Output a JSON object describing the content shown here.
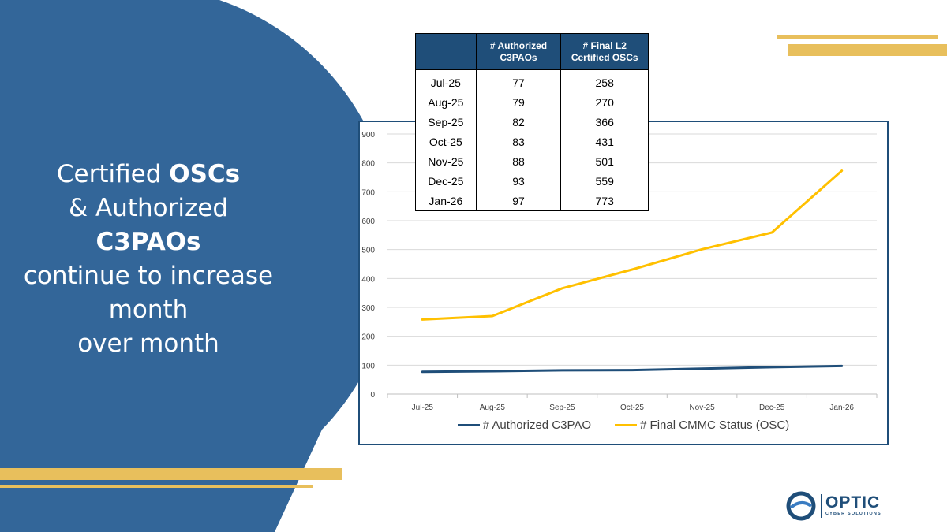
{
  "headline": {
    "line1_pre": "Certified ",
    "line1_bold": "OSCs",
    "line2": "& Authorized",
    "line3_bold": "C3PAOs",
    "line4": "continue to increase",
    "line5": "month",
    "line6": "over month"
  },
  "table": {
    "headers": [
      "",
      "# Authorized C3PAOs",
      "# Final L2 Certified OSCs"
    ],
    "rows": [
      [
        "Jul-25",
        "77",
        "258"
      ],
      [
        "Aug-25",
        "79",
        "270"
      ],
      [
        "Sep-25",
        "82",
        "366"
      ],
      [
        "Oct-25",
        "83",
        "431"
      ],
      [
        "Nov-25",
        "88",
        "501"
      ],
      [
        "Dec-25",
        "93",
        "559"
      ],
      [
        "Jan-26",
        "97",
        "773"
      ]
    ]
  },
  "chart_data": {
    "type": "line",
    "title": "",
    "xlabel": "",
    "ylabel": "",
    "categories": [
      "Jul-25",
      "Aug-25",
      "Sep-25",
      "Oct-25",
      "Nov-25",
      "Dec-25",
      "Jan-26"
    ],
    "y_ticks": [
      "0",
      "100",
      "200",
      "300",
      "400",
      "500",
      "600",
      "700",
      "800",
      "900"
    ],
    "ylim": [
      0,
      900
    ],
    "grid": true,
    "legend_position": "bottom",
    "series": [
      {
        "name": "# Authorized C3PAO",
        "values": [
          77,
          79,
          82,
          83,
          88,
          93,
          97
        ],
        "color": "#1f4e79"
      },
      {
        "name": "# Final CMMC Status (OSC)",
        "values": [
          258,
          270,
          366,
          431,
          501,
          559,
          773
        ],
        "color": "#ffc000"
      }
    ]
  },
  "logo": {
    "name": "OPTIC",
    "subtitle": "CYBER SOLUTIONS"
  },
  "colors": {
    "panel_blue": "#336699",
    "accent_gold": "#e8bf5c",
    "header_blue": "#1f4e79"
  }
}
